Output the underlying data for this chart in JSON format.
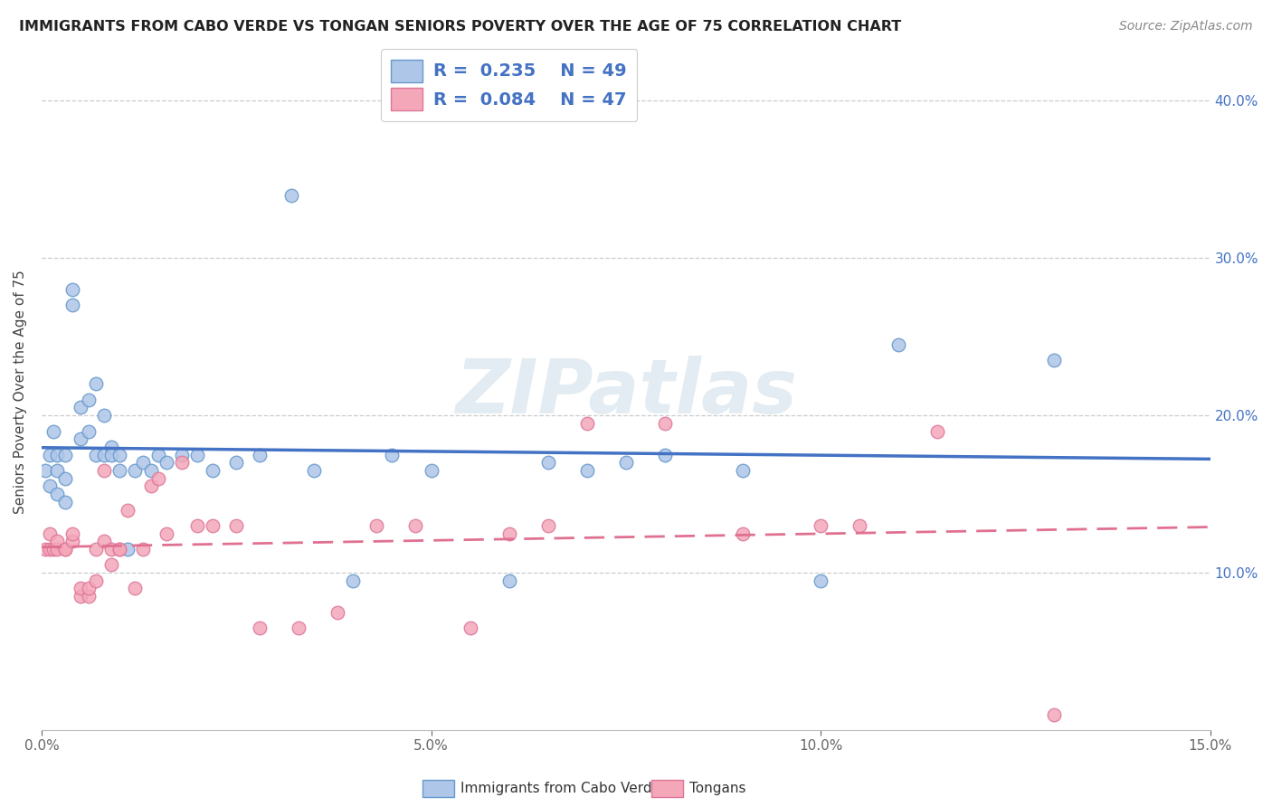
{
  "title": "IMMIGRANTS FROM CABO VERDE VS TONGAN SENIORS POVERTY OVER THE AGE OF 75 CORRELATION CHART",
  "source": "Source: ZipAtlas.com",
  "ylabel": "Seniors Poverty Over the Age of 75",
  "xlim": [
    0,
    0.15
  ],
  "ylim": [
    0,
    0.43
  ],
  "x_tick_labels": [
    "0.0%",
    "5.0%",
    "10.0%",
    "15.0%"
  ],
  "x_ticks": [
    0.0,
    0.05,
    0.1,
    0.15
  ],
  "y_ticks": [
    0.1,
    0.2,
    0.3,
    0.4
  ],
  "y_tick_labels": [
    "10.0%",
    "20.0%",
    "30.0%",
    "40.0%"
  ],
  "legend_entries": [
    {
      "label": "Immigrants from Cabo Verde",
      "color": "#aec6e8",
      "edge": "#6699cc",
      "R": 0.235,
      "N": 49
    },
    {
      "label": "Tongans",
      "color": "#f4a7b9",
      "edge": "#dd7799",
      "R": 0.084,
      "N": 47
    }
  ],
  "cabo_verde_x": [
    0.0005,
    0.001,
    0.001,
    0.0015,
    0.002,
    0.002,
    0.002,
    0.003,
    0.003,
    0.003,
    0.004,
    0.004,
    0.005,
    0.005,
    0.006,
    0.006,
    0.007,
    0.007,
    0.008,
    0.008,
    0.009,
    0.009,
    0.01,
    0.01,
    0.011,
    0.012,
    0.013,
    0.014,
    0.015,
    0.016,
    0.018,
    0.02,
    0.022,
    0.025,
    0.028,
    0.032,
    0.035,
    0.04,
    0.045,
    0.05,
    0.06,
    0.065,
    0.07,
    0.075,
    0.08,
    0.09,
    0.1,
    0.11,
    0.13
  ],
  "cabo_verde_y": [
    0.165,
    0.155,
    0.175,
    0.19,
    0.15,
    0.165,
    0.175,
    0.145,
    0.16,
    0.175,
    0.28,
    0.27,
    0.185,
    0.205,
    0.19,
    0.21,
    0.175,
    0.22,
    0.175,
    0.2,
    0.18,
    0.175,
    0.165,
    0.175,
    0.115,
    0.165,
    0.17,
    0.165,
    0.175,
    0.17,
    0.175,
    0.175,
    0.165,
    0.17,
    0.175,
    0.34,
    0.165,
    0.095,
    0.175,
    0.165,
    0.095,
    0.17,
    0.165,
    0.17,
    0.175,
    0.165,
    0.095,
    0.245,
    0.235
  ],
  "tongans_x": [
    0.0005,
    0.001,
    0.001,
    0.0015,
    0.002,
    0.002,
    0.003,
    0.003,
    0.004,
    0.004,
    0.005,
    0.005,
    0.006,
    0.006,
    0.007,
    0.007,
    0.008,
    0.008,
    0.009,
    0.009,
    0.01,
    0.01,
    0.011,
    0.012,
    0.013,
    0.014,
    0.015,
    0.016,
    0.018,
    0.02,
    0.022,
    0.025,
    0.028,
    0.033,
    0.038,
    0.043,
    0.048,
    0.055,
    0.06,
    0.065,
    0.07,
    0.08,
    0.09,
    0.1,
    0.105,
    0.115,
    0.13
  ],
  "tongans_y": [
    0.115,
    0.125,
    0.115,
    0.115,
    0.115,
    0.12,
    0.115,
    0.115,
    0.12,
    0.125,
    0.085,
    0.09,
    0.085,
    0.09,
    0.095,
    0.115,
    0.12,
    0.165,
    0.105,
    0.115,
    0.115,
    0.115,
    0.14,
    0.09,
    0.115,
    0.155,
    0.16,
    0.125,
    0.17,
    0.13,
    0.13,
    0.13,
    0.065,
    0.065,
    0.075,
    0.13,
    0.13,
    0.065,
    0.125,
    0.13,
    0.195,
    0.195,
    0.125,
    0.13,
    0.13,
    0.19,
    0.01
  ],
  "cabo_verde_line_color": "#4472c4",
  "tongans_line_color": "#e07090",
  "background_color": "#ffffff",
  "grid_color": "#cccccc",
  "watermark": "ZIPatlas",
  "watermark_color": "#ccdde8"
}
